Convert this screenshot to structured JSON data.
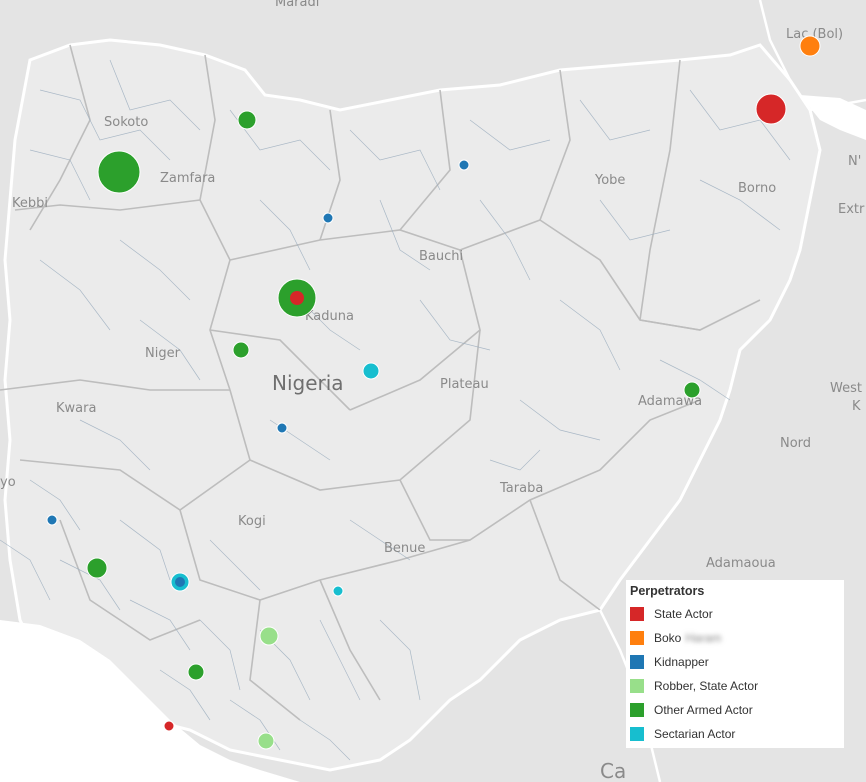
{
  "map": {
    "country_label": "Nigeria",
    "labels": [
      {
        "id": "maradi",
        "text": "Maradi"
      },
      {
        "id": "lac",
        "text": "Lac (Bol)"
      },
      {
        "id": "sokoto",
        "text": "Sokoto"
      },
      {
        "id": "zamfara",
        "text": "Zamfara"
      },
      {
        "id": "kebbi",
        "text": "Kebbi"
      },
      {
        "id": "yobe",
        "text": "Yobe"
      },
      {
        "id": "borno",
        "text": "Borno"
      },
      {
        "id": "extr",
        "text": "Extr"
      },
      {
        "id": "ndj",
        "text": "N'"
      },
      {
        "id": "bauchi",
        "text": "Bauchi"
      },
      {
        "id": "kaduna",
        "text": "Kaduna"
      },
      {
        "id": "niger",
        "text": "Niger"
      },
      {
        "id": "plateau",
        "text": "Plateau"
      },
      {
        "id": "kwara",
        "text": "Kwara"
      },
      {
        "id": "adamawa",
        "text": "Adamawa"
      },
      {
        "id": "west",
        "text": "West"
      },
      {
        "id": "ke",
        "text": "K"
      },
      {
        "id": "nord",
        "text": "Nord"
      },
      {
        "id": "oyo",
        "text": "yo"
      },
      {
        "id": "taraba",
        "text": "Taraba"
      },
      {
        "id": "kogi",
        "text": "Kogi"
      },
      {
        "id": "benue",
        "text": "Benue"
      },
      {
        "id": "adamaoua",
        "text": "Adamaoua"
      },
      {
        "id": "ca",
        "text": "Ca"
      }
    ]
  },
  "legend": {
    "title": "Perpetrators",
    "items": [
      {
        "label": "State Actor",
        "color": "#d62728"
      },
      {
        "label": "Boko",
        "hidden_suffix": "Haram",
        "color": "#ff7f0e"
      },
      {
        "label": "Kidnapper",
        "color": "#1f77b4"
      },
      {
        "label": "Robber, State Actor",
        "color": "#98df8a"
      },
      {
        "label": "Other Armed Actor",
        "color": "#2ca02c"
      },
      {
        "label": "Sectarian Actor",
        "color": "#17becf"
      }
    ]
  },
  "events": [
    {
      "perpetrator": "State Actor",
      "size": "large"
    },
    {
      "perpetrator": "Boko Haram",
      "size": "small"
    },
    {
      "perpetrator": "Other Armed Actor",
      "size": "small"
    },
    {
      "perpetrator": "Other Armed Actor",
      "size": "xlarge"
    },
    {
      "perpetrator": "Kidnapper",
      "size": "tiny"
    },
    {
      "perpetrator": "Kidnapper",
      "size": "tiny"
    },
    {
      "perpetrator": "Other Armed Actor",
      "size": "xlarge"
    },
    {
      "perpetrator": "State Actor",
      "size": "small"
    },
    {
      "perpetrator": "Other Armed Actor",
      "size": "small"
    },
    {
      "perpetrator": "Sectarian Actor",
      "size": "small"
    },
    {
      "perpetrator": "Other Armed Actor",
      "size": "small"
    },
    {
      "perpetrator": "Kidnapper",
      "size": "tiny"
    },
    {
      "perpetrator": "Kidnapper",
      "size": "tiny"
    },
    {
      "perpetrator": "Other Armed Actor",
      "size": "medium"
    },
    {
      "perpetrator": "Sectarian Actor",
      "size": "small"
    },
    {
      "perpetrator": "Kidnapper",
      "size": "tiny"
    },
    {
      "perpetrator": "Sectarian Actor",
      "size": "tiny"
    },
    {
      "perpetrator": "Robber, State Actor",
      "size": "small"
    },
    {
      "perpetrator": "Other Armed Actor",
      "size": "small"
    },
    {
      "perpetrator": "State Actor",
      "size": "tiny"
    },
    {
      "perpetrator": "Robber, State Actor",
      "size": "small"
    }
  ]
}
